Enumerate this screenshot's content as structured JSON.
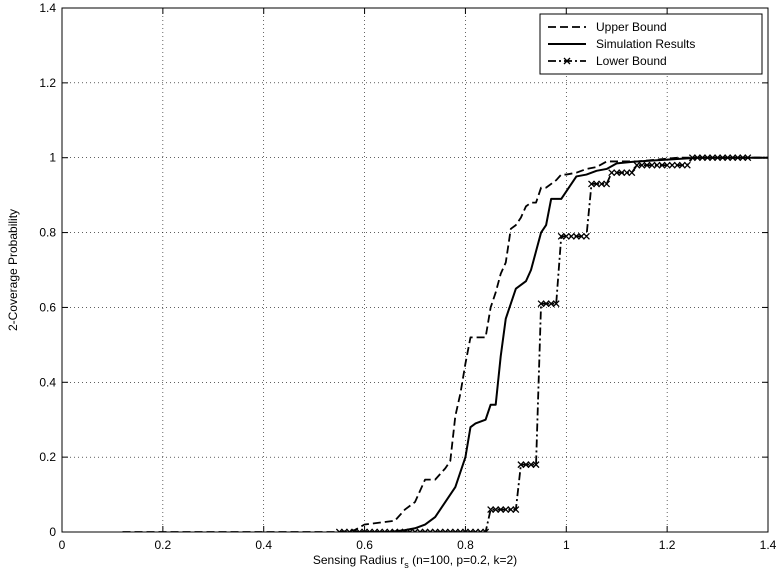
{
  "chart_data": {
    "type": "line",
    "title": "",
    "xlabel": "Sensing Radius r",
    "xlabel_sub": "s",
    "xlabel_suffix": " (n=100, p=0.2, k=2)",
    "ylabel": "2-Coverage Probability",
    "xlim": [
      0,
      1.4
    ],
    "ylim": [
      0,
      1.4
    ],
    "xticks": [
      0,
      0.2,
      0.4,
      0.6,
      0.8,
      1,
      1.2,
      1.4
    ],
    "yticks": [
      0,
      0.2,
      0.4,
      0.6,
      0.8,
      1,
      1.2,
      1.4
    ],
    "xtick_labels": [
      "0",
      "0.2",
      "0.4",
      "0.6",
      "0.8",
      "1",
      "1.2",
      "1.4"
    ],
    "ytick_labels": [
      "0",
      "0.2",
      "0.4",
      "0.6",
      "0.8",
      "1",
      "1.2",
      "1.4"
    ],
    "grid": true,
    "legend_position": "top-right",
    "series": [
      {
        "name": "Upper Bound",
        "style": "dashed",
        "marker": "none",
        "points": [
          [
            0.12,
            0
          ],
          [
            0.55,
            0
          ],
          [
            0.58,
            0.005
          ],
          [
            0.6,
            0.02
          ],
          [
            0.63,
            0.025
          ],
          [
            0.66,
            0.03
          ],
          [
            0.68,
            0.06
          ],
          [
            0.7,
            0.08
          ],
          [
            0.72,
            0.14
          ],
          [
            0.74,
            0.14
          ],
          [
            0.76,
            0.17
          ],
          [
            0.77,
            0.19
          ],
          [
            0.78,
            0.31
          ],
          [
            0.79,
            0.37
          ],
          [
            0.8,
            0.45
          ],
          [
            0.81,
            0.52
          ],
          [
            0.83,
            0.52
          ],
          [
            0.84,
            0.52
          ],
          [
            0.85,
            0.6
          ],
          [
            0.86,
            0.64
          ],
          [
            0.87,
            0.69
          ],
          [
            0.88,
            0.72
          ],
          [
            0.89,
            0.81
          ],
          [
            0.9,
            0.82
          ],
          [
            0.91,
            0.84
          ],
          [
            0.92,
            0.87
          ],
          [
            0.93,
            0.88
          ],
          [
            0.94,
            0.88
          ],
          [
            0.95,
            0.92
          ],
          [
            0.96,
            0.92
          ],
          [
            0.98,
            0.94
          ],
          [
            0.99,
            0.955
          ],
          [
            1.0,
            0.955
          ],
          [
            1.02,
            0.96
          ],
          [
            1.04,
            0.97
          ],
          [
            1.06,
            0.975
          ],
          [
            1.08,
            0.99
          ],
          [
            1.1,
            0.99
          ],
          [
            1.14,
            0.99
          ],
          [
            1.18,
            0.995
          ],
          [
            1.22,
            1.0
          ],
          [
            1.3,
            1.0
          ],
          [
            1.4,
            1.0
          ]
        ]
      },
      {
        "name": "Simulation Results",
        "style": "solid",
        "marker": "none",
        "points": [
          [
            0.58,
            0
          ],
          [
            0.65,
            0
          ],
          [
            0.68,
            0.005
          ],
          [
            0.7,
            0.01
          ],
          [
            0.72,
            0.02
          ],
          [
            0.74,
            0.04
          ],
          [
            0.76,
            0.08
          ],
          [
            0.78,
            0.12
          ],
          [
            0.79,
            0.16
          ],
          [
            0.8,
            0.2
          ],
          [
            0.81,
            0.28
          ],
          [
            0.82,
            0.29
          ],
          [
            0.83,
            0.295
          ],
          [
            0.84,
            0.3
          ],
          [
            0.85,
            0.34
          ],
          [
            0.86,
            0.34
          ],
          [
            0.87,
            0.47
          ],
          [
            0.88,
            0.57
          ],
          [
            0.89,
            0.61
          ],
          [
            0.9,
            0.65
          ],
          [
            0.92,
            0.67
          ],
          [
            0.93,
            0.7
          ],
          [
            0.94,
            0.75
          ],
          [
            0.95,
            0.8
          ],
          [
            0.96,
            0.82
          ],
          [
            0.97,
            0.89
          ],
          [
            0.99,
            0.89
          ],
          [
            1.0,
            0.91
          ],
          [
            1.02,
            0.95
          ],
          [
            1.04,
            0.955
          ],
          [
            1.06,
            0.965
          ],
          [
            1.08,
            0.97
          ],
          [
            1.1,
            0.985
          ],
          [
            1.14,
            0.99
          ],
          [
            1.2,
            0.995
          ],
          [
            1.26,
            1.0
          ],
          [
            1.4,
            1.0
          ]
        ]
      },
      {
        "name": "Lower Bound",
        "style": "dashdot",
        "marker": "x",
        "points": [
          [
            0.55,
            0
          ],
          [
            0.84,
            0
          ],
          [
            0.85,
            0.06
          ],
          [
            0.9,
            0.06
          ],
          [
            0.91,
            0.18
          ],
          [
            0.94,
            0.18
          ],
          [
            0.95,
            0.61
          ],
          [
            0.98,
            0.61
          ],
          [
            0.99,
            0.79
          ],
          [
            1.04,
            0.79
          ],
          [
            1.05,
            0.93
          ],
          [
            1.08,
            0.93
          ],
          [
            1.09,
            0.96
          ],
          [
            1.13,
            0.96
          ],
          [
            1.14,
            0.98
          ],
          [
            1.24,
            0.98
          ],
          [
            1.25,
            1.0
          ],
          [
            1.4,
            1.0
          ]
        ]
      }
    ]
  }
}
